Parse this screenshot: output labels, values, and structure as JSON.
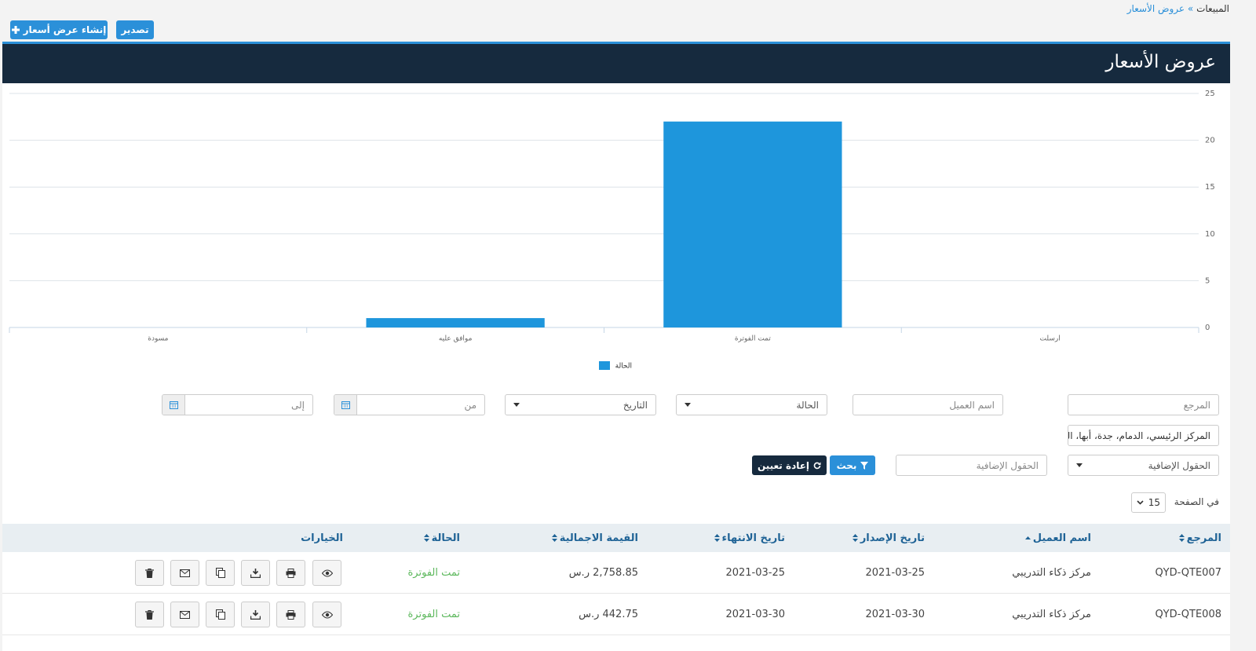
{
  "breadcrumb": {
    "parent": "المبيعات",
    "current": "عروض الأسعار"
  },
  "buttons": {
    "export": "تصدير",
    "create": "إنشاء عرض أسعار"
  },
  "header": {
    "title": "عروض الأسعار"
  },
  "chart_data": {
    "type": "bar",
    "categories": [
      "مسودة",
      "موافق عليه",
      "تمت الفوترة",
      "ارسلت"
    ],
    "series": [
      {
        "name": "الحالة",
        "color": "#1e96dc",
        "values": [
          0,
          1,
          22,
          0
        ]
      }
    ],
    "ylim": [
      0,
      25
    ],
    "yticks": [
      0,
      5,
      10,
      15,
      20,
      25
    ],
    "grid": true
  },
  "filters": {
    "reference": "المرجع",
    "client": "اسم العميل",
    "status": "الحالة",
    "date": "التاريخ",
    "from": "من",
    "to": "إلى",
    "branches": "المركز الرئيسي، الدمام، جدة، أبها، الخ",
    "extra_select": "الحقول الإضافية",
    "extra_input": "الحقول الإضافية",
    "search": "بحث",
    "reset": "إعادة تعيين"
  },
  "per_page": {
    "label": "في الصفحة",
    "value": 15
  },
  "table": {
    "columns": [
      "المرجع",
      "اسم العميل",
      "تاريخ الإصدار",
      "تاريخ الانتهاء",
      "القيمة الاجمالية",
      "الحالة",
      "الخيارات"
    ],
    "rows": [
      [
        "QYD-QTE007",
        "مركز ذكاء التدريبي",
        "2021-03-25",
        "2021-03-25",
        "2,758.85 ر.س",
        "تمت الفوترة"
      ],
      [
        "QYD-QTE008",
        "مركز ذكاء التدريبي",
        "2021-03-30",
        "2021-03-30",
        "442.75 ر.س",
        "تمت الفوترة"
      ]
    ]
  }
}
